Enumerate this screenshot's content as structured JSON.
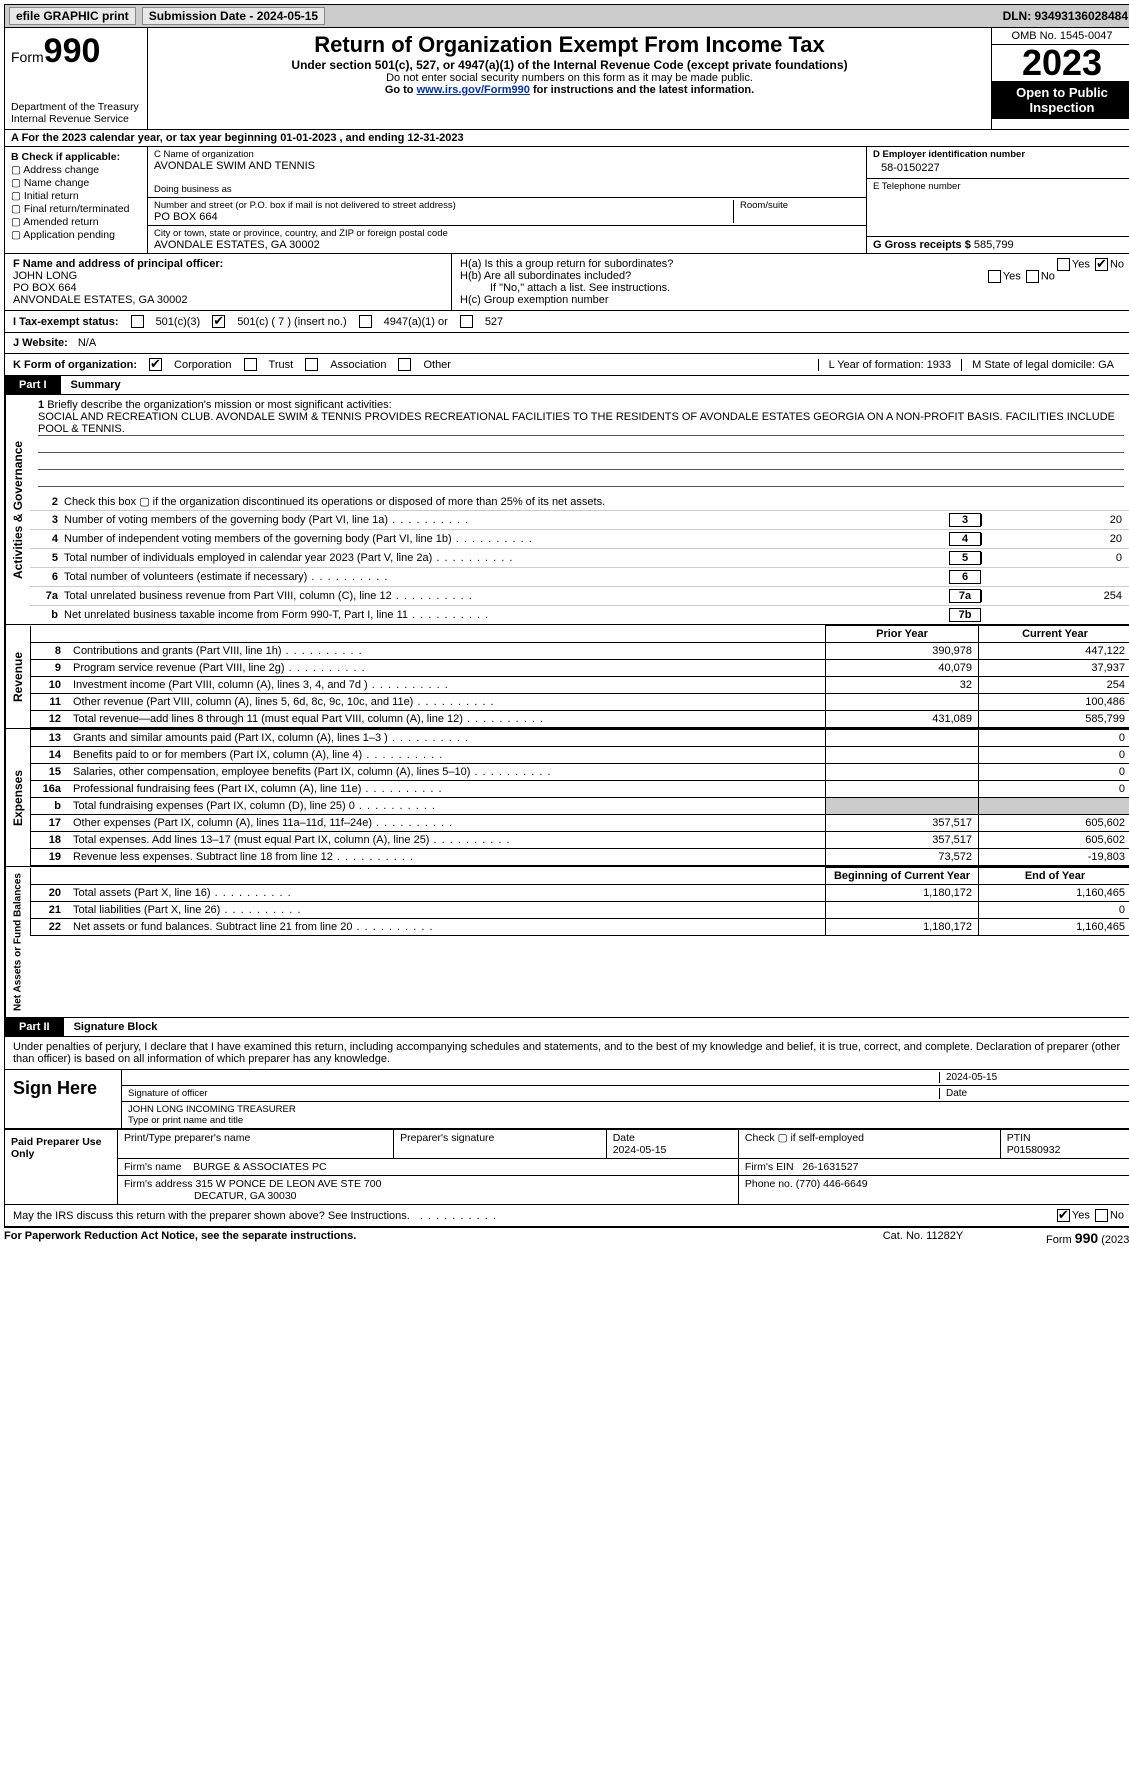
{
  "topbar": {
    "efile": "efile GRAPHIC print",
    "submission": "Submission Date - 2024-05-15",
    "dln": "DLN: 93493136028484"
  },
  "header": {
    "form_label": "Form",
    "form_no": "990",
    "dept": "Department of the Treasury Internal Revenue Service",
    "title": "Return of Organization Exempt From Income Tax",
    "sub": "Under section 501(c), 527, or 4947(a)(1) of the Internal Revenue Code (except private foundations)",
    "note1": "Do not enter social security numbers on this form as it may be made public.",
    "note2_pre": "Go to ",
    "note2_link": "www.irs.gov/Form990",
    "note2_post": " for instructions and the latest information.",
    "omb": "OMB No. 1545-0047",
    "year": "2023",
    "open": "Open to Public Inspection"
  },
  "row_a": "A For the 2023 calendar year, or tax year beginning 01-01-2023   , and ending 12-31-2023",
  "col_b": {
    "label": "B Check if applicable:",
    "opts": [
      "Address change",
      "Name change",
      "Initial return",
      "Final return/terminated",
      "Amended return",
      "Application pending"
    ]
  },
  "c": {
    "name_lbl": "C Name of organization",
    "name": "AVONDALE SWIM AND TENNIS",
    "dba_lbl": "Doing business as",
    "dba": "",
    "street_lbl": "Number and street (or P.O. box if mail is not delivered to street address)",
    "street": "PO BOX 664",
    "room_lbl": "Room/suite",
    "city_lbl": "City or town, state or province, country, and ZIP or foreign postal code",
    "city": "AVONDALE ESTATES, GA  30002"
  },
  "d": {
    "lbl": "D Employer identification number",
    "val": "58-0150227"
  },
  "e": {
    "lbl": "E Telephone number",
    "val": ""
  },
  "g": {
    "lbl": "G Gross receipts $",
    "val": "585,799"
  },
  "f": {
    "lbl": "F  Name and address of principal officer:",
    "name": "JOHN LONG",
    "street": "PO BOX 664",
    "city": "ANVONDALE ESTATES, GA  30002"
  },
  "h": {
    "a": "H(a)  Is this a group return for subordinates?",
    "b": "H(b)  Are all subordinates included?",
    "b_note": "If \"No,\" attach a list. See instructions.",
    "c": "H(c)  Group exemption number",
    "yes": "Yes",
    "no": "No"
  },
  "i": {
    "lbl": "I   Tax-exempt status:",
    "o1": "501(c)(3)",
    "o2": "501(c) ( 7 ) (insert no.)",
    "o3": "4947(a)(1) or",
    "o4": "527"
  },
  "j": {
    "lbl": "J   Website:",
    "val": "N/A"
  },
  "k": {
    "lbl": "K Form of organization:",
    "opts": [
      "Corporation",
      "Trust",
      "Association",
      "Other"
    ],
    "l": "L Year of formation: 1933",
    "m": "M State of legal domicile: GA"
  },
  "part1": {
    "tag": "Part I",
    "title": "Summary"
  },
  "mission": {
    "num": "1",
    "lbl": "Briefly describe the organization's mission or most significant activities:",
    "text": "SOCIAL AND RECREATION CLUB. AVONDALE SWIM & TENNIS PROVIDES RECREATIONAL FACILITIES TO THE RESIDENTS OF AVONDALE ESTATES GEORGIA ON A NON-PROFIT BASIS. FACILITIES INCLUDE POOL & TENNIS."
  },
  "gov_lines": [
    {
      "n": "2",
      "d": "Check this box ▢ if the organization discontinued its operations or disposed of more than 25% of its net assets.",
      "box": "",
      "val": ""
    },
    {
      "n": "3",
      "d": "Number of voting members of the governing body (Part VI, line 1a)",
      "box": "3",
      "val": "20"
    },
    {
      "n": "4",
      "d": "Number of independent voting members of the governing body (Part VI, line 1b)",
      "box": "4",
      "val": "20"
    },
    {
      "n": "5",
      "d": "Total number of individuals employed in calendar year 2023 (Part V, line 2a)",
      "box": "5",
      "val": "0"
    },
    {
      "n": "6",
      "d": "Total number of volunteers (estimate if necessary)",
      "box": "6",
      "val": ""
    },
    {
      "n": "7a",
      "d": "Total unrelated business revenue from Part VIII, column (C), line 12",
      "box": "7a",
      "val": "254"
    },
    {
      "n": "b",
      "d_plain": "Net unrelated business taxable income from Form 990-T, Part I, line 11",
      "box": "7b",
      "val": ""
    }
  ],
  "rev_header": {
    "py": "Prior Year",
    "cy": "Current Year"
  },
  "rev_lines": [
    {
      "n": "8",
      "d": "Contributions and grants (Part VIII, line 1h)",
      "py": "390,978",
      "cy": "447,122"
    },
    {
      "n": "9",
      "d": "Program service revenue (Part VIII, line 2g)",
      "py": "40,079",
      "cy": "37,937"
    },
    {
      "n": "10",
      "d": "Investment income (Part VIII, column (A), lines 3, 4, and 7d )",
      "py": "32",
      "cy": "254"
    },
    {
      "n": "11",
      "d": "Other revenue (Part VIII, column (A), lines 5, 6d, 8c, 9c, 10c, and 11e)",
      "py": "",
      "cy": "100,486"
    },
    {
      "n": "12",
      "d": "Total revenue—add lines 8 through 11 (must equal Part VIII, column (A), line 12)",
      "py": "431,089",
      "cy": "585,799"
    }
  ],
  "exp_lines": [
    {
      "n": "13",
      "d": "Grants and similar amounts paid (Part IX, column (A), lines 1–3 )",
      "py": "",
      "cy": "0"
    },
    {
      "n": "14",
      "d": "Benefits paid to or for members (Part IX, column (A), line 4)",
      "py": "",
      "cy": "0"
    },
    {
      "n": "15",
      "d": "Salaries, other compensation, employee benefits (Part IX, column (A), lines 5–10)",
      "py": "",
      "cy": "0"
    },
    {
      "n": "16a",
      "d": "Professional fundraising fees (Part IX, column (A), line 11e)",
      "py": "",
      "cy": "0"
    },
    {
      "n": "b",
      "d": "Total fundraising expenses (Part IX, column (D), line 25) 0",
      "py": "grey",
      "cy": "grey"
    },
    {
      "n": "17",
      "d": "Other expenses (Part IX, column (A), lines 11a–11d, 11f–24e)",
      "py": "357,517",
      "cy": "605,602"
    },
    {
      "n": "18",
      "d": "Total expenses. Add lines 13–17 (must equal Part IX, column (A), line 25)",
      "py": "357,517",
      "cy": "605,602"
    },
    {
      "n": "19",
      "d": "Revenue less expenses. Subtract line 18 from line 12",
      "py": "73,572",
      "cy": "-19,803"
    }
  ],
  "na_header": {
    "py": "Beginning of Current Year",
    "cy": "End of Year"
  },
  "na_lines": [
    {
      "n": "20",
      "d": "Total assets (Part X, line 16)",
      "py": "1,180,172",
      "cy": "1,160,465"
    },
    {
      "n": "21",
      "d": "Total liabilities (Part X, line 26)",
      "py": "",
      "cy": "0"
    },
    {
      "n": "22",
      "d": "Net assets or fund balances. Subtract line 21 from line 20",
      "py": "1,180,172",
      "cy": "1,160,465"
    }
  ],
  "part2": {
    "tag": "Part II",
    "title": "Signature Block"
  },
  "perjury": "Under penalties of perjury, I declare that I have examined this return, including accompanying schedules and statements, and to the best of my knowledge and belief, it is true, correct, and complete. Declaration of preparer (other than officer) is based on all information of which preparer has any knowledge.",
  "sign": {
    "left": "Sign Here",
    "sig_lbl": "Signature of officer",
    "date": "2024-05-15",
    "date_lbl": "Date",
    "name": "JOHN LONG INCOMING TREASURER",
    "name_lbl": "Type or print name and title"
  },
  "prep": {
    "left": "Paid Preparer Use Only",
    "h1": "Print/Type preparer's name",
    "h2": "Preparer's signature",
    "h3_lbl": "Date",
    "h3": "2024-05-15",
    "h4": "Check ▢ if self-employed",
    "h5_lbl": "PTIN",
    "h5": "P01580932",
    "firm_lbl": "Firm's name",
    "firm": "BURGE & ASSOCIATES PC",
    "ein_lbl": "Firm's EIN",
    "ein": "26-1631527",
    "addr_lbl": "Firm's address",
    "addr1": "315 W PONCE DE LEON AVE STE 700",
    "addr2": "DECATUR, GA  30030",
    "phone_lbl": "Phone no.",
    "phone": "(770) 446-6649"
  },
  "discuss": {
    "q": "May the IRS discuss this return with the preparer shown above? See Instructions.",
    "yes": "Yes",
    "no": "No"
  },
  "footer": {
    "l": "For Paperwork Reduction Act Notice, see the separate instructions.",
    "m": "Cat. No. 11282Y",
    "r_pre": "Form ",
    "r_no": "990",
    "r_post": " (2023)"
  },
  "side": {
    "gov": "Activities & Governance",
    "rev": "Revenue",
    "exp": "Expenses",
    "na": "Net Assets or Fund Balances"
  }
}
